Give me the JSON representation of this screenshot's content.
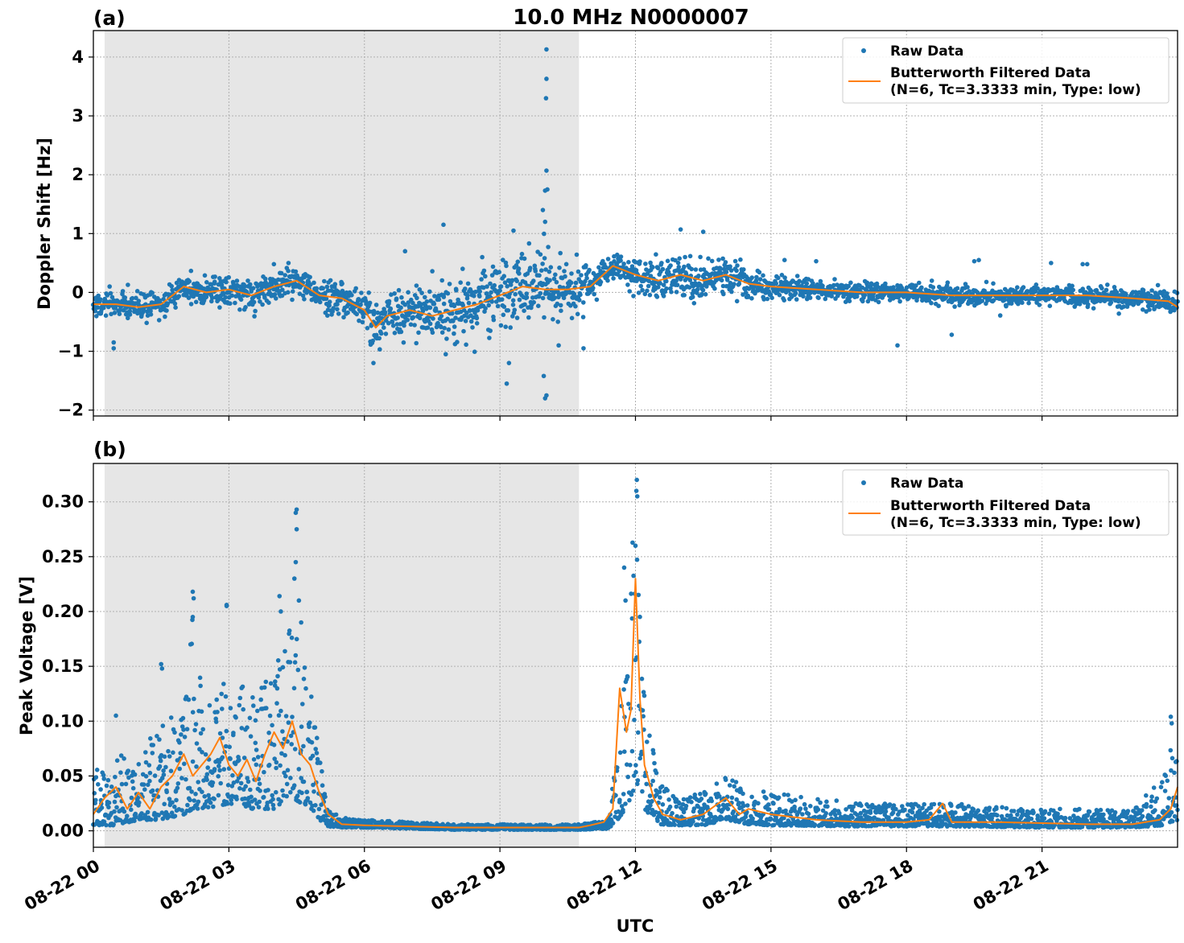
{
  "figure": {
    "title": "10.0 MHz N0000007",
    "xlabel": "UTC",
    "x_tick_labels": [
      "08-22 00",
      "08-22 03",
      "08-22 06",
      "08-22 09",
      "08-22 12",
      "08-22 15",
      "08-22 18",
      "08-22 21"
    ],
    "colors": {
      "raw": "#1f77b4",
      "filtered": "#ff7f0e",
      "shade": "#e6e6e6"
    },
    "legend": {
      "raw_label": "Raw Data",
      "filtered_label_line1": "Butterworth Filtered Data",
      "filtered_label_line2": "(N=6, Tc=3.3333 min, Type: low)"
    }
  },
  "chart_data": [
    {
      "type": "scatter",
      "panel_label": "(a)",
      "ylabel": "Doppler Shift [Hz]",
      "x_unit": "hours UTC on 08-22",
      "xlim": [
        0,
        24
      ],
      "ylim": [
        -2.1,
        4.45
      ],
      "y_ticks": [
        4,
        3,
        2,
        1,
        0,
        -1,
        -2
      ],
      "y_tick_labels": [
        "4",
        "3",
        "2",
        "1",
        "0",
        "−1",
        "−2"
      ],
      "shaded_interval": [
        0.25,
        10.75
      ],
      "grid": true,
      "legend_position": "top-right",
      "series": [
        {
          "name": "Butterworth Filtered Data",
          "x": [
            0.0,
            0.5,
            1.0,
            1.5,
            2.0,
            2.5,
            3.0,
            3.5,
            4.0,
            4.5,
            5.0,
            5.5,
            6.0,
            6.25,
            6.5,
            7.0,
            7.5,
            8.0,
            8.5,
            9.0,
            9.5,
            10.0,
            10.5,
            11.0,
            11.5,
            12.0,
            12.5,
            13.0,
            13.5,
            14.0,
            14.5,
            15.0,
            16.0,
            17.0,
            18.0,
            19.0,
            20.0,
            21.0,
            22.0,
            23.0,
            23.8,
            24.0
          ],
          "y": [
            -0.2,
            -0.2,
            -0.25,
            -0.2,
            0.1,
            0.0,
            0.05,
            -0.05,
            0.1,
            0.2,
            -0.05,
            -0.1,
            -0.3,
            -0.6,
            -0.4,
            -0.3,
            -0.4,
            -0.3,
            -0.2,
            -0.05,
            0.1,
            0.05,
            0.05,
            0.1,
            0.45,
            0.3,
            0.2,
            0.3,
            0.2,
            0.3,
            0.15,
            0.1,
            0.05,
            0.0,
            0.0,
            -0.05,
            -0.05,
            -0.05,
            -0.05,
            -0.1,
            -0.15,
            -0.25
          ]
        },
        {
          "name": "Raw Data",
          "spread_envelope": {
            "x": [
              0,
              1,
              2,
              3,
              4,
              5,
              6,
              7,
              8,
              9,
              10,
              10.75,
              11.5,
              12,
              13,
              14,
              15,
              16,
              18,
              20,
              22,
              24
            ],
            "half_width": [
              0.18,
              0.2,
              0.2,
              0.22,
              0.22,
              0.25,
              0.3,
              0.4,
              0.45,
              0.5,
              0.5,
              0.35,
              0.2,
              0.25,
              0.35,
              0.25,
              0.18,
              0.15,
              0.15,
              0.14,
              0.14,
              0.16
            ]
          },
          "outliers": [
            [
              10.03,
              4.13
            ],
            [
              10.03,
              3.63
            ],
            [
              10.02,
              3.3
            ],
            [
              10.03,
              2.07
            ],
            [
              10.0,
              1.73
            ],
            [
              10.05,
              1.75
            ],
            [
              9.95,
              1.4
            ],
            [
              10.0,
              1.2
            ],
            [
              10.0,
              -1.8
            ],
            [
              10.03,
              -1.75
            ],
            [
              9.97,
              -1.42
            ],
            [
              9.15,
              -1.55
            ],
            [
              9.2,
              -1.2
            ],
            [
              6.9,
              0.7
            ],
            [
              9.3,
              1.05
            ],
            [
              7.75,
              1.15
            ],
            [
              13.0,
              1.07
            ],
            [
              13.5,
              1.03
            ],
            [
              6.2,
              -1.2
            ],
            [
              7.8,
              -1.05
            ],
            [
              10.3,
              -0.9
            ],
            [
              10.85,
              -0.95
            ],
            [
              17.8,
              -0.9
            ],
            [
              0.45,
              -0.95
            ],
            [
              0.45,
              -0.85
            ],
            [
              19.5,
              0.53
            ],
            [
              19.6,
              0.55
            ],
            [
              19.0,
              -0.72
            ],
            [
              22.0,
              0.48
            ],
            [
              21.9,
              0.48
            ],
            [
              21.2,
              0.5
            ],
            [
              15.3,
              0.55
            ],
            [
              16.0,
              0.53
            ]
          ]
        }
      ]
    },
    {
      "type": "scatter",
      "panel_label": "(b)",
      "ylabel": "Peak Voltage [V]",
      "x_unit": "hours UTC on 08-22",
      "xlim": [
        0,
        24
      ],
      "ylim": [
        -0.015,
        0.335
      ],
      "y_ticks": [
        0.3,
        0.25,
        0.2,
        0.15,
        0.1,
        0.05,
        0.0
      ],
      "y_tick_labels": [
        "0.30",
        "0.25",
        "0.20",
        "0.15",
        "0.10",
        "0.05",
        "0.00"
      ],
      "shaded_interval": [
        0.25,
        10.75
      ],
      "grid": true,
      "legend_position": "top-right",
      "series": [
        {
          "name": "Butterworth Filtered Data",
          "x": [
            0.0,
            0.25,
            0.5,
            0.75,
            1.0,
            1.25,
            1.5,
            1.75,
            2.0,
            2.2,
            2.4,
            2.6,
            2.8,
            3.0,
            3.2,
            3.4,
            3.6,
            3.8,
            4.0,
            4.2,
            4.4,
            4.6,
            4.8,
            5.0,
            5.2,
            5.5,
            6.0,
            7.0,
            8.0,
            9.0,
            10.0,
            10.75,
            11.0,
            11.3,
            11.5,
            11.65,
            11.8,
            11.9,
            12.0,
            12.1,
            12.2,
            12.4,
            12.6,
            13.0,
            13.5,
            14.0,
            14.3,
            14.5,
            15.0,
            16.0,
            17.0,
            18.0,
            18.5,
            18.8,
            19.0,
            20.0,
            21.0,
            22.0,
            23.0,
            23.6,
            23.85,
            24.0
          ],
          "y": [
            0.015,
            0.03,
            0.04,
            0.02,
            0.035,
            0.02,
            0.04,
            0.05,
            0.07,
            0.05,
            0.06,
            0.07,
            0.085,
            0.06,
            0.05,
            0.065,
            0.045,
            0.07,
            0.09,
            0.075,
            0.1,
            0.07,
            0.06,
            0.035,
            0.015,
            0.006,
            0.005,
            0.004,
            0.003,
            0.003,
            0.003,
            0.003,
            0.005,
            0.008,
            0.02,
            0.13,
            0.09,
            0.11,
            0.23,
            0.12,
            0.06,
            0.03,
            0.015,
            0.01,
            0.015,
            0.03,
            0.015,
            0.02,
            0.015,
            0.01,
            0.008,
            0.008,
            0.01,
            0.025,
            0.008,
            0.008,
            0.007,
            0.006,
            0.006,
            0.01,
            0.02,
            0.04
          ]
        },
        {
          "name": "Raw Data",
          "spread_envelope": {
            "x": [
              0,
              0.5,
              1,
              1.5,
              2,
              2.2,
              2.5,
              3,
              3.5,
              4,
              4.4,
              4.8,
              5.0,
              5.2,
              5.5,
              6,
              8,
              10,
              10.75,
              11.4,
              11.6,
              11.8,
              12.0,
              12.2,
              12.5,
              13,
              13.5,
              14.0,
              14.5,
              15,
              17,
              19,
              21,
              23,
              23.7,
              24
            ],
            "high": [
              0.06,
              0.07,
              0.07,
              0.1,
              0.12,
              0.21,
              0.12,
              0.14,
              0.13,
              0.15,
              0.19,
              0.14,
              0.07,
              0.02,
              0.012,
              0.01,
              0.006,
              0.006,
              0.006,
              0.01,
              0.08,
              0.22,
              0.31,
              0.12,
              0.05,
              0.03,
              0.035,
              0.05,
              0.04,
              0.035,
              0.025,
              0.025,
              0.02,
              0.02,
              0.05,
              0.1
            ],
            "low": [
              0.005,
              0.005,
              0.01,
              0.01,
              0.015,
              0.02,
              0.02,
              0.025,
              0.02,
              0.02,
              0.03,
              0.02,
              0.01,
              0.004,
              0.003,
              0.003,
              0.001,
              0.001,
              0.001,
              0.002,
              0.01,
              0.02,
              0.04,
              0.02,
              0.006,
              0.005,
              0.005,
              0.01,
              0.006,
              0.005,
              0.004,
              0.004,
              0.003,
              0.003,
              0.005,
              0.01
            ]
          },
          "outliers": [
            [
              12.03,
              0.32
            ],
            [
              12.02,
              0.31
            ],
            [
              12.04,
              0.305
            ],
            [
              4.5,
              0.293
            ],
            [
              4.48,
              0.29
            ],
            [
              4.5,
              0.275
            ],
            [
              4.48,
              0.245
            ],
            [
              4.45,
              0.23
            ],
            [
              2.2,
              0.218
            ],
            [
              2.22,
              0.212
            ],
            [
              2.2,
              0.195
            ],
            [
              2.95,
              0.206
            ],
            [
              2.95,
              0.205
            ],
            [
              4.12,
              0.214
            ],
            [
              4.15,
              0.2
            ],
            [
              4.55,
              0.21
            ],
            [
              4.6,
              0.19
            ],
            [
              2.15,
              0.17
            ],
            [
              1.5,
              0.152
            ],
            [
              1.52,
              0.148
            ],
            [
              11.75,
              0.24
            ],
            [
              11.78,
              0.21
            ],
            [
              12.0,
              0.26
            ],
            [
              0.5,
              0.105
            ],
            [
              23.85,
              0.104
            ],
            [
              23.87,
              0.098
            ]
          ]
        }
      ]
    }
  ]
}
